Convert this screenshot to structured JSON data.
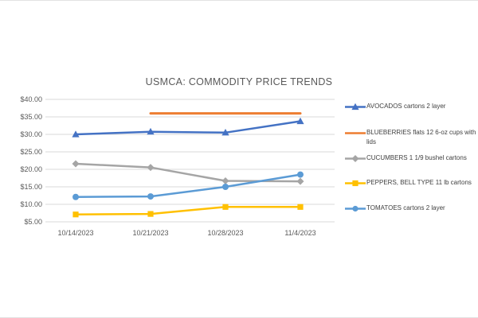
{
  "window": {
    "background": "#ffffff",
    "edge_border_color": "#e3e3e3"
  },
  "chart_data": {
    "type": "line",
    "title": "USMCA: COMMODITY PRICE TRENDS",
    "title_color": "#595959",
    "axis_text_color": "#595959",
    "legend_text_color": "#404040",
    "grid": true,
    "gridline_color": "#D9D9D9",
    "legend_position": "right",
    "categories": [
      "10/14/2023",
      "10/21/2023",
      "10/28/2023",
      "11/4/2023"
    ],
    "y_axis": {
      "min": 5,
      "max": 40,
      "step": 5,
      "tick_labels": [
        "$5.00",
        "$10.00",
        "$15.00",
        "$20.00",
        "$25.00",
        "$30.00",
        "$35.00",
        "$40.00"
      ]
    },
    "series": [
      {
        "name": "AVOCADOS cartons 2 layer",
        "color": "#4472C4",
        "marker": "triangle",
        "values": [
          30.0,
          30.75,
          30.5,
          33.75
        ]
      },
      {
        "name": "BLUEBERRIES flats 12 6-oz cups with lids",
        "color": "#ED7D31",
        "marker": "none",
        "values": [
          null,
          36.0,
          36.0,
          36.0
        ]
      },
      {
        "name": "CUCUMBERS 1 1/9 bushel cartons",
        "color": "#A5A5A5",
        "marker": "diamond",
        "values": [
          21.6,
          20.55,
          16.7,
          16.55
        ]
      },
      {
        "name": "PEPPERS, BELL TYPE 11 lb cartons",
        "color": "#FFC000",
        "marker": "square",
        "values": [
          7.1,
          7.25,
          9.25,
          9.25
        ]
      },
      {
        "name": "TOMATOES cartons 2 layer",
        "color": "#5B9BD5",
        "marker": "circle",
        "values": [
          12.1,
          12.25,
          15.0,
          18.5
        ]
      }
    ]
  }
}
